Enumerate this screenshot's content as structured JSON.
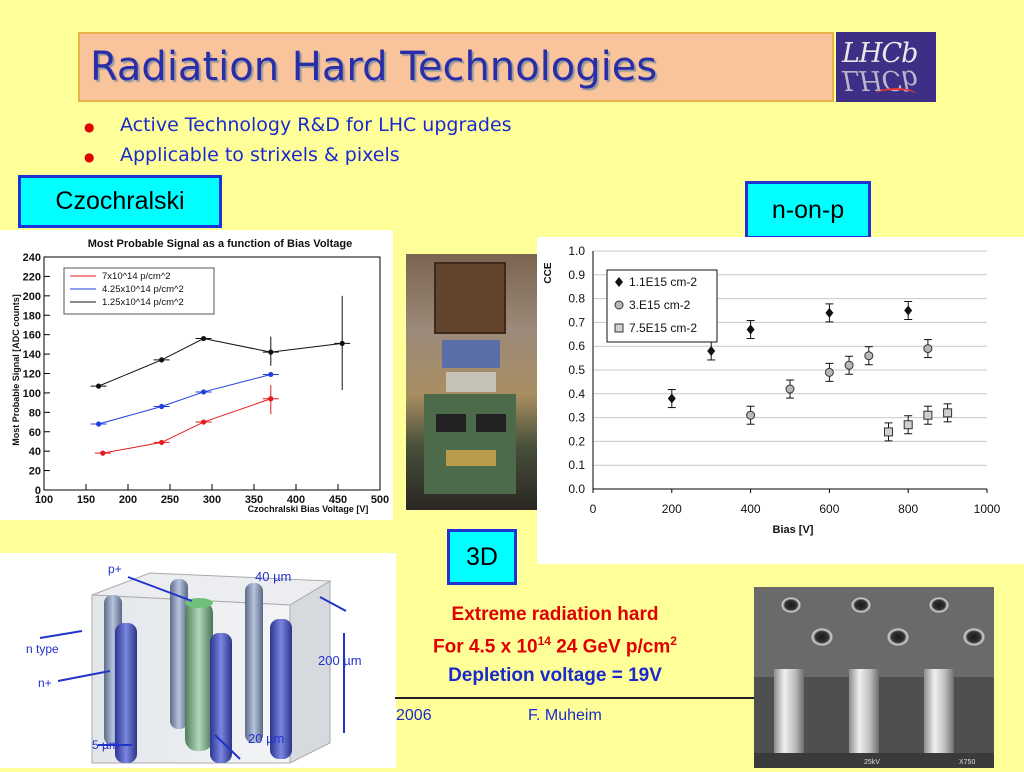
{
  "title": "Radiation Hard Technologies",
  "logo": "LHCb",
  "bullets": [
    "Active Technology R&D for LHC upgrades",
    "Applicable to strixels & pixels"
  ],
  "labels": {
    "czochralski": "Czochralski",
    "n_on_p": "n-on-p",
    "three_d": "3D"
  },
  "highlight": {
    "line1": "Extreme radiation hard",
    "line2_prefix": "For 4.5 x 10",
    "line2_exp": "14",
    "line2_suffix": " 24 GeV p/cm",
    "line2_exp2": "2",
    "line3": "Depletion voltage = 19V"
  },
  "footer": {
    "date": "2006",
    "author": "F. Muheim"
  },
  "diagram3d": {
    "labels": [
      "p+",
      "40 µm",
      "n type",
      "n+",
      "200 µm",
      "5 µm",
      "20 µm"
    ]
  },
  "sem_caption": [
    "25kV",
    "X750"
  ],
  "chart_data": [
    {
      "type": "line",
      "title": "Most Probable Signal as a function of Bias Voltage",
      "xlabel": "Czochralski Bias Voltage [V]",
      "ylabel": "Most Probable Signal [ADC counts]",
      "xlim": [
        100,
        500
      ],
      "ylim": [
        0,
        240
      ],
      "xticks": [
        100,
        150,
        200,
        250,
        300,
        350,
        400,
        450,
        500
      ],
      "yticks": [
        0,
        20,
        40,
        60,
        80,
        100,
        120,
        140,
        160,
        180,
        200,
        220,
        240
      ],
      "legend": "top-left",
      "series": [
        {
          "name": "7x10^14 p/cm^2",
          "color": "#E41A1C",
          "x": [
            170,
            240,
            290,
            370
          ],
          "y": [
            38,
            49,
            70,
            94
          ]
        },
        {
          "name": "4.25x10^14 p/cm^2",
          "color": "#1F3FE0",
          "x": [
            165,
            240,
            290,
            370
          ],
          "y": [
            68,
            86,
            101,
            119
          ]
        },
        {
          "name": "1.25x10^14 p/cm^2",
          "color": "#111111",
          "x": [
            165,
            240,
            290,
            370,
            455
          ],
          "y": [
            107,
            134,
            156,
            142,
            151
          ]
        }
      ]
    },
    {
      "type": "scatter",
      "xlabel": "Bias [V]",
      "ylabel": "CCE",
      "xlim": [
        0,
        1000
      ],
      "ylim": [
        0.0,
        1.0
      ],
      "xticks": [
        0,
        200,
        400,
        600,
        800,
        1000
      ],
      "yticks": [
        "0.0",
        "0.1",
        "0.2",
        "0.3",
        "0.4",
        "0.5",
        "0.6",
        "0.7",
        "0.8",
        "0.9",
        "1.0"
      ],
      "legend": "top-left",
      "grid": true,
      "series": [
        {
          "name": "1.1E15 cm-2",
          "marker": "diamond",
          "x": [
            200,
            300,
            400,
            600,
            800
          ],
          "y": [
            0.38,
            0.58,
            0.67,
            0.74,
            0.75
          ]
        },
        {
          "name": "3.E15 cm-2",
          "marker": "circle",
          "x": [
            400,
            500,
            600,
            650,
            700,
            850
          ],
          "y": [
            0.31,
            0.42,
            0.49,
            0.52,
            0.56,
            0.59
          ]
        },
        {
          "name": "7.5E15 cm-2",
          "marker": "square",
          "x": [
            750,
            800,
            850,
            900
          ],
          "y": [
            0.24,
            0.27,
            0.31,
            0.32
          ]
        }
      ]
    }
  ]
}
